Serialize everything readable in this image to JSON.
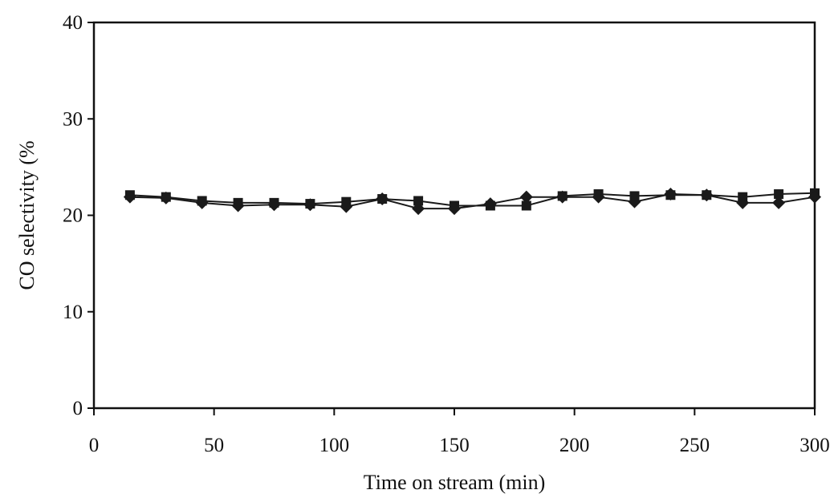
{
  "chart_data": {
    "type": "line",
    "title": "",
    "xlabel": "Time on stream (min)",
    "ylabel": "CO selectivity (%",
    "xlim": [
      0,
      300
    ],
    "ylim": [
      0,
      40
    ],
    "xticks": [
      0,
      50,
      100,
      150,
      200,
      250,
      300
    ],
    "yticks": [
      0,
      10,
      20,
      30,
      40
    ],
    "x_tick_labels": [
      "0",
      "50",
      "100",
      "150",
      "200",
      "250",
      "300"
    ],
    "y_tick_labels": [
      "0",
      "10",
      "20",
      "30",
      "40"
    ],
    "grid": false,
    "legend": "none",
    "series": [
      {
        "marker": "square",
        "color": "#1a1a1a",
        "x": [
          15,
          30,
          45,
          60,
          75,
          90,
          105,
          120,
          135,
          150,
          165,
          180,
          195,
          210,
          225,
          240,
          255,
          270,
          285,
          300
        ],
        "y": [
          22.1,
          21.9,
          21.5,
          21.3,
          21.3,
          21.2,
          21.4,
          21.7,
          21.5,
          21.0,
          21.0,
          21.0,
          22.0,
          22.2,
          22.0,
          22.1,
          22.1,
          21.9,
          22.2,
          22.3
        ]
      },
      {
        "marker": "diamond",
        "color": "#1a1a1a",
        "x": [
          15,
          30,
          45,
          60,
          75,
          90,
          105,
          120,
          135,
          150,
          165,
          180,
          195,
          210,
          225,
          240,
          255,
          270,
          285,
          300
        ],
        "y": [
          21.9,
          21.8,
          21.3,
          21.0,
          21.1,
          21.1,
          20.9,
          21.7,
          20.7,
          20.7,
          21.2,
          21.9,
          21.9,
          21.9,
          21.4,
          22.2,
          22.1,
          21.3,
          21.3,
          21.9
        ]
      }
    ]
  }
}
